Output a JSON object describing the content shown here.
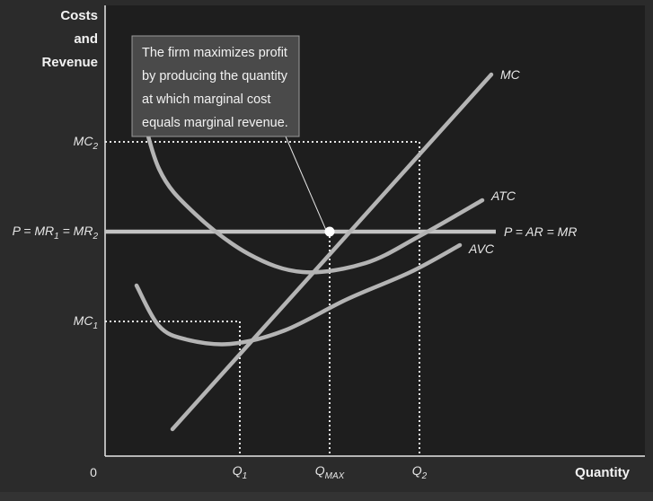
{
  "colors": {
    "background": "#2b2b2b",
    "plot_background": "#1e1e1e",
    "curve": "#b4b4b4",
    "price_line": "#c3c3c3",
    "text": "#e6e6e6",
    "dotted_guide": "#e8e8e8",
    "callout_fill": "#4a4a4a",
    "callout_border": "#9a9a9a",
    "marker": "#ffffff"
  },
  "chart_data": {
    "type": "line",
    "title": "",
    "ylabel": [
      "Costs",
      "and",
      "Revenue"
    ],
    "xlabel": "Quantity",
    "origin_label": "0",
    "x_ticks": [
      {
        "base": "Q",
        "sub": "1",
        "x": 1.5
      },
      {
        "base": "Q",
        "sub": "MAX",
        "x": 2.5
      },
      {
        "base": "Q",
        "sub": "2",
        "x": 3.5
      }
    ],
    "y_ticks": [
      {
        "base": "MC",
        "sub": "2",
        "y": 3.5,
        "raw": "MC2"
      },
      {
        "base": "P = MR",
        "sub": "1",
        "mid": " = MR",
        "sub2": "2",
        "y": 2.5
      },
      {
        "base": "MC",
        "sub": "1",
        "y": 1.5,
        "raw": "MC1"
      }
    ],
    "xlim": [
      0,
      6
    ],
    "ylim": [
      0,
      5
    ],
    "grid": false,
    "series": [
      {
        "name": "MC",
        "points": [
          [
            0.75,
            0.3
          ],
          [
            4.3,
            4.25
          ]
        ]
      },
      {
        "name": "ATC",
        "points": [
          [
            0.35,
            4.1
          ],
          [
            0.6,
            3.2
          ],
          [
            1.0,
            2.7
          ],
          [
            1.6,
            2.25
          ],
          [
            2.2,
            2.05
          ],
          [
            2.9,
            2.15
          ],
          [
            3.5,
            2.45
          ],
          [
            4.2,
            2.85
          ]
        ]
      },
      {
        "name": "AVC",
        "points": [
          [
            0.35,
            1.9
          ],
          [
            0.6,
            1.45
          ],
          [
            0.9,
            1.3
          ],
          [
            1.4,
            1.25
          ],
          [
            2.0,
            1.4
          ],
          [
            2.7,
            1.75
          ],
          [
            3.4,
            2.05
          ],
          [
            3.95,
            2.35
          ]
        ]
      }
    ],
    "price_line": {
      "name": "P = AR = MR",
      "y": 2.5,
      "x_from": 0,
      "x_to": 4.35
    },
    "curve_labels": [
      "MC",
      "ATC",
      "AVC",
      "P = AR = MR"
    ],
    "equilibrium": {
      "x": 2.5,
      "y": 2.5
    },
    "guides": [
      {
        "from_y": 3.5,
        "at_x": 3.5
      },
      {
        "from_y": 1.5,
        "at_x": 1.5
      },
      {
        "from_y": 2.5,
        "at_x": 2.5
      }
    ],
    "annotation": {
      "lines": [
        "The firm maximizes profit",
        "by producing the quantity",
        "at which marginal cost",
        "equals marginal revenue."
      ]
    }
  }
}
